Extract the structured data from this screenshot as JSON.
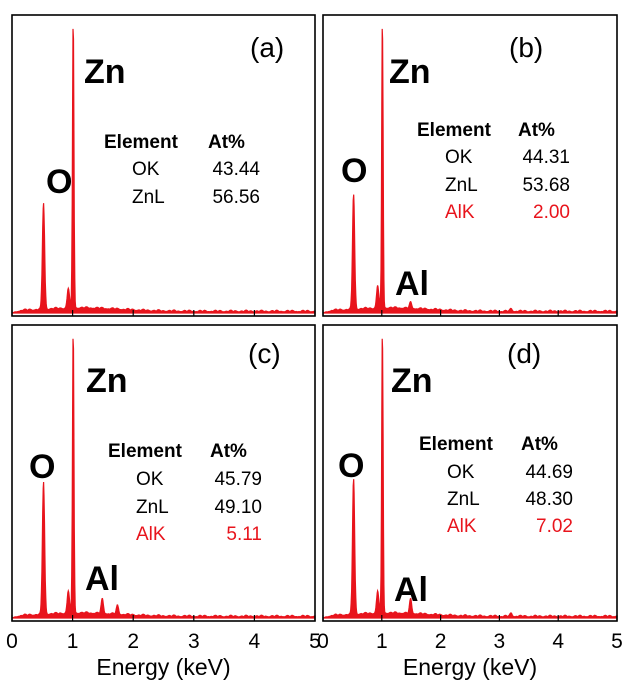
{
  "colors": {
    "spectrum": "#e8141c",
    "highlight": "#e8141c",
    "frame": "#000000",
    "text": "#000000"
  },
  "xlabel": "Energy (keV)",
  "x_ticks": [
    "0",
    "1",
    "2",
    "3",
    "4",
    "5"
  ],
  "table_headers": {
    "element": "Element",
    "atpct": "At%"
  },
  "chart_data": [
    {
      "type": "area",
      "panel": "(a)",
      "xlabel": "Energy (keV)",
      "xlim": [
        0,
        5
      ],
      "x_ticks": [
        0,
        1,
        2,
        3,
        4,
        5
      ],
      "peak_labels": [
        {
          "text": "O",
          "energy": 0.52
        },
        {
          "text": "Zn",
          "energy": 1.01
        }
      ],
      "peaks": [
        {
          "energy": 0.52,
          "height": 0.37
        },
        {
          "energy": 0.93,
          "height": 0.07
        },
        {
          "energy": 1.01,
          "height": 1.0
        }
      ],
      "table": [
        {
          "element": "OK",
          "value": "43.44",
          "highlight": false
        },
        {
          "element": "ZnL",
          "value": "56.56",
          "highlight": false
        }
      ]
    },
    {
      "type": "area",
      "panel": "(b)",
      "xlabel": "Energy (keV)",
      "xlim": [
        0,
        5
      ],
      "x_ticks": [
        0,
        1,
        2,
        3,
        4,
        5
      ],
      "peak_labels": [
        {
          "text": "O",
          "energy": 0.52
        },
        {
          "text": "Zn",
          "energy": 1.01
        },
        {
          "text": "Al",
          "energy": 1.49
        }
      ],
      "peaks": [
        {
          "energy": 0.52,
          "height": 0.4
        },
        {
          "energy": 0.93,
          "height": 0.08
        },
        {
          "energy": 1.01,
          "height": 1.0
        },
        {
          "energy": 1.49,
          "height": 0.02
        },
        {
          "energy": 3.2,
          "height": 0.008
        }
      ],
      "table": [
        {
          "element": "OK",
          "value": "44.31",
          "highlight": false
        },
        {
          "element": "ZnL",
          "value": "53.68",
          "highlight": false
        },
        {
          "element": "AlK",
          "value": "2.00",
          "highlight": true
        }
      ]
    },
    {
      "type": "area",
      "panel": "(c)",
      "xlabel": "Energy (keV)",
      "xlim": [
        0,
        5
      ],
      "x_ticks": [
        0,
        1,
        2,
        3,
        4,
        5
      ],
      "peak_labels": [
        {
          "text": "O",
          "energy": 0.52
        },
        {
          "text": "Zn",
          "energy": 1.01
        },
        {
          "text": "Al",
          "energy": 1.49
        }
      ],
      "peaks": [
        {
          "energy": 0.52,
          "height": 0.47
        },
        {
          "energy": 0.93,
          "height": 0.08
        },
        {
          "energy": 1.01,
          "height": 1.0
        },
        {
          "energy": 1.49,
          "height": 0.05
        },
        {
          "energy": 1.74,
          "height": 0.03
        }
      ],
      "table": [
        {
          "element": "OK",
          "value": "45.79",
          "highlight": false
        },
        {
          "element": "ZnL",
          "value": "49.10",
          "highlight": false
        },
        {
          "element": "AlK",
          "value": "5.11",
          "highlight": true
        }
      ]
    },
    {
      "type": "area",
      "panel": "(d)",
      "xlabel": "Energy (keV)",
      "xlim": [
        0,
        5
      ],
      "x_ticks": [
        0,
        1,
        2,
        3,
        4,
        5
      ],
      "peak_labels": [
        {
          "text": "O",
          "energy": 0.52
        },
        {
          "text": "Zn",
          "energy": 1.01
        },
        {
          "text": "Al",
          "energy": 1.49
        }
      ],
      "peaks": [
        {
          "energy": 0.52,
          "height": 0.48
        },
        {
          "energy": 0.93,
          "height": 0.08
        },
        {
          "energy": 1.01,
          "height": 1.0
        },
        {
          "energy": 1.49,
          "height": 0.05
        },
        {
          "energy": 3.2,
          "height": 0.01
        }
      ],
      "table": [
        {
          "element": "OK",
          "value": "44.69",
          "highlight": false
        },
        {
          "element": "ZnL",
          "value": "48.30",
          "highlight": false
        },
        {
          "element": "AlK",
          "value": "7.02",
          "highlight": true
        }
      ]
    }
  ]
}
